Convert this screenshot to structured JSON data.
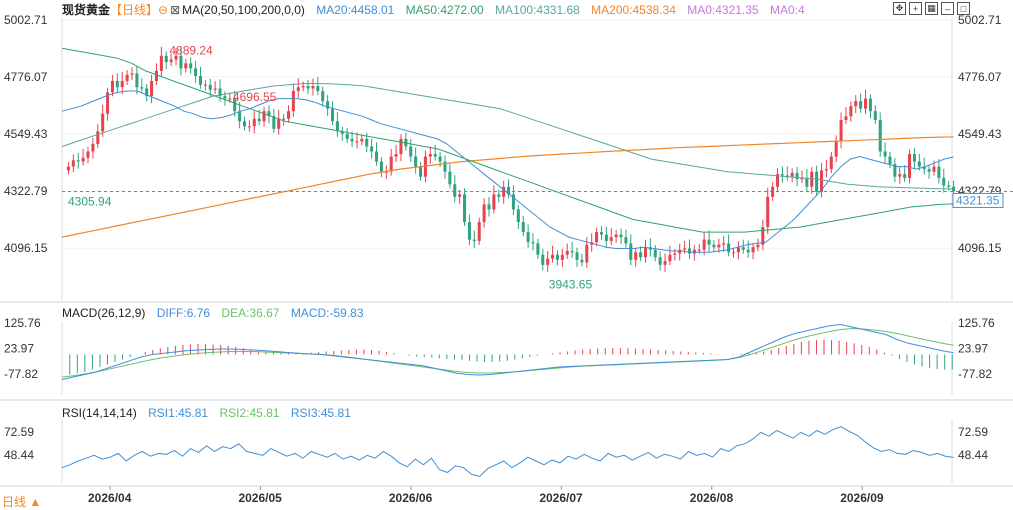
{
  "header": {
    "symbol": "现货黄金",
    "period": "【日线】",
    "ma_label": "MA(20,50,100,200,0,0)",
    "ma20": "MA20:4458.01",
    "ma50": "MA50:4272.00",
    "ma100": "MA100:4331.68",
    "ma200": "MA200:4538.34",
    "ma0a": "MA0:4321.35",
    "ma0b": "MA0:4",
    "macd_label": "MACD(26,12,9)",
    "diff": "DIFF:6.76",
    "dea": "DEA:36.67",
    "macd": "MACD:-59.83",
    "rsi_label": "RSI(14,14,14)",
    "rsi1": "RSI1:45.81",
    "rsi2": "RSI2:45.81",
    "rsi3": "RSI3:45.81"
  },
  "period_button": "日线 ▲",
  "toolbar_icons": [
    "move-icon",
    "crosshair-icon",
    "grid-icon",
    "minimize-icon",
    "fullscreen-icon"
  ],
  "colors": {
    "up": "#e8424f",
    "down": "#2fa37f",
    "ma20": "#3f8fd9",
    "ma50": "#2fa36a",
    "ma100": "#56a8a0",
    "ma200": "#f0862c",
    "dea": "#6cc06c",
    "axis_text": "#333333",
    "price_tag": "#4a90d9"
  },
  "chart_data": [
    {
      "type": "candlestick",
      "panel": "main",
      "yticks": [
        "5002.71",
        "4776.07",
        "4549.43",
        "4322.79",
        "4096.15"
      ],
      "ylim": [
        3950,
        5010
      ],
      "xticks": [
        "2026/04",
        "2026/05",
        "2026/06",
        "2026/07",
        "2026/08",
        "2026/09"
      ],
      "current_price": "4321.35",
      "max_label": "4889.24",
      "min_label": "3943.65",
      "left_label": "4305.94",
      "local_high_label": "4696.55",
      "series_close": [
        4420,
        4445,
        4440,
        4455,
        4480,
        4510,
        4560,
        4630,
        4715,
        4760,
        4735,
        4760,
        4785,
        4790,
        4735,
        4730,
        4700,
        4760,
        4800,
        4860,
        4835,
        4845,
        4860,
        4810,
        4830,
        4810,
        4780,
        4745,
        4745,
        4725,
        4730,
        4700,
        4690,
        4690,
        4640,
        4600,
        4580,
        4580,
        4610,
        4600,
        4640,
        4620,
        4570,
        4610,
        4610,
        4640,
        4720,
        4735,
        4740,
        4730,
        4740,
        4720,
        4680,
        4650,
        4600,
        4560,
        4550,
        4530,
        4520,
        4520,
        4530,
        4500,
        4480,
        4440,
        4400,
        4400,
        4460,
        4470,
        4530,
        4500,
        4460,
        4420,
        4380,
        4460,
        4470,
        4460,
        4440,
        4400,
        4350,
        4300,
        4310,
        4200,
        4130,
        4125,
        4200,
        4270,
        4250,
        4310,
        4300,
        4340,
        4310,
        4250,
        4200,
        4160,
        4120,
        4115,
        4070,
        4030,
        4055,
        4070,
        4050,
        4070,
        4085,
        4080,
        4050,
        4040,
        4110,
        4120,
        4160,
        4150,
        4125,
        4140,
        4150,
        4140,
        4115,
        4050,
        4080,
        4060,
        4100,
        4090,
        4060,
        4030,
        4045,
        4070,
        4075,
        4090,
        4095,
        4075,
        4090,
        4090,
        4130,
        4110,
        4100,
        4110,
        4115,
        4080,
        4080,
        4100,
        4090,
        4080,
        4100,
        4110,
        4180,
        4300,
        4340,
        4390,
        4385,
        4380,
        4395,
        4370,
        4375,
        4340,
        4400,
        4320,
        4405,
        4410,
        4460,
        4520,
        4605,
        4620,
        4660,
        4680,
        4650,
        4690,
        4640,
        4605,
        4480,
        4460,
        4430,
        4380,
        4390,
        4375,
        4470,
        4440,
        4420,
        4410,
        4400,
        4420,
        4375,
        4345,
        4340,
        4321.35
      ],
      "ma20": [
        4640,
        4650,
        4660,
        4675,
        4690,
        4705,
        4715,
        4720,
        4720,
        4705,
        4690,
        4675,
        4660,
        4640,
        4630,
        4615,
        4610,
        4615,
        4625,
        4640,
        4650,
        4665,
        4680,
        4690,
        4690,
        4690,
        4685,
        4675,
        4660,
        4650,
        4640,
        4630,
        4620,
        4605,
        4590,
        4580,
        4570,
        4560,
        4550,
        4540,
        4530,
        4510,
        4480,
        4450,
        4420,
        4390,
        4360,
        4330,
        4300,
        4270,
        4240,
        4210,
        4180,
        4160,
        4140,
        4130,
        4120,
        4110,
        4100,
        4095,
        4095,
        4095,
        4100,
        4095,
        4090,
        4085,
        4085,
        4080,
        4080,
        4080,
        4085,
        4090,
        4100,
        4110,
        4115,
        4120,
        4150,
        4180,
        4210,
        4250,
        4290,
        4330,
        4380,
        4420,
        4450,
        4460,
        4450,
        4440,
        4430,
        4420,
        4420,
        4410,
        4420,
        4435,
        4450,
        4458
      ],
      "ma50": [
        4890,
        4880,
        4870,
        4860,
        4850,
        4830,
        4800,
        4780,
        4760,
        4740,
        4720,
        4700,
        4680,
        4660,
        4640,
        4620,
        4600,
        4590,
        4580,
        4570,
        4560,
        4550,
        4540,
        4530,
        4520,
        4510,
        4500,
        4490,
        4470,
        4450,
        4430,
        4410,
        4390,
        4370,
        4350,
        4330,
        4310,
        4290,
        4270,
        4250,
        4230,
        4210,
        4200,
        4190,
        4180,
        4170,
        4160,
        4160,
        4160,
        4160,
        4165,
        4170,
        4175,
        4180,
        4190,
        4200,
        4210,
        4220,
        4230,
        4240,
        4250,
        4260,
        4265,
        4270,
        4272
      ],
      "ma100": [
        4500,
        4520,
        4540,
        4560,
        4580,
        4600,
        4620,
        4640,
        4660,
        4680,
        4700,
        4710,
        4720,
        4730,
        4740,
        4745,
        4750,
        4750,
        4748,
        4745,
        4740,
        4730,
        4720,
        4710,
        4700,
        4690,
        4680,
        4670,
        4660,
        4650,
        4630,
        4610,
        4590,
        4570,
        4550,
        4530,
        4510,
        4490,
        4470,
        4450,
        4440,
        4430,
        4420,
        4410,
        4400,
        4395,
        4390,
        4385,
        4380,
        4375,
        4370,
        4360,
        4350,
        4345,
        4340,
        4338,
        4336,
        4334,
        4332,
        4331.68
      ],
      "ma200": [
        4140,
        4165,
        4190,
        4215,
        4240,
        4265,
        4290,
        4315,
        4340,
        4365,
        4390,
        4410,
        4425,
        4440,
        4450,
        4460,
        4468,
        4475,
        4482,
        4488,
        4495,
        4500,
        4505,
        4510,
        4515,
        4520,
        4525,
        4530,
        4535,
        4538.34
      ]
    },
    {
      "type": "macd",
      "panel": "macd",
      "yticks": [
        "125.76",
        "23.97",
        "-77.82"
      ],
      "ylim": [
        -110,
        130
      ],
      "histogram": [
        -80,
        -75,
        -70,
        -60,
        -50,
        -40,
        -30,
        -20,
        -10,
        0,
        10,
        18,
        25,
        30,
        35,
        38,
        40,
        42,
        42,
        40,
        38,
        35,
        30,
        25,
        20,
        15,
        10,
        8,
        6,
        5,
        5,
        6,
        8,
        10,
        12,
        14,
        16,
        18,
        20,
        20,
        18,
        15,
        10,
        5,
        0,
        -5,
        -8,
        -10,
        -12,
        -15,
        -18,
        -20,
        -22,
        -25,
        -28,
        -30,
        -30,
        -28,
        -25,
        -20,
        -15,
        -10,
        -5,
        0,
        5,
        8,
        12,
        16,
        20,
        22,
        24,
        25,
        26,
        26,
        25,
        24,
        22,
        20,
        18,
        16,
        14,
        12,
        10,
        8,
        6,
        4,
        2,
        0,
        2,
        4,
        6,
        8,
        12,
        18,
        26,
        34,
        42,
        50,
        55,
        58,
        60,
        58,
        55,
        50,
        45,
        38,
        30,
        20,
        8,
        -5,
        -18,
        -30,
        -40,
        -48,
        -55,
        -58,
        -60,
        -59.83
      ],
      "diff": [
        -100,
        -90,
        -80,
        -70,
        -55,
        -40,
        -25,
        -10,
        0,
        5,
        10,
        15,
        18,
        20,
        22,
        22,
        20,
        18,
        15,
        12,
        8,
        5,
        2,
        0,
        -5,
        -10,
        -15,
        -20,
        -25,
        -30,
        -35,
        -40,
        -45,
        -55,
        -65,
        -75,
        -80,
        -82,
        -80,
        -75,
        -70,
        -65,
        -60,
        -55,
        -50,
        -48,
        -46,
        -44,
        -42,
        -40,
        -38,
        -36,
        -34,
        -32,
        -30,
        -28,
        -26,
        -24,
        -22,
        -20,
        -10,
        10,
        30,
        50,
        70,
        85,
        95,
        105,
        115,
        120,
        110,
        100,
        90,
        80,
        60,
        45,
        35,
        25,
        15,
        6.76
      ],
      "dea": [
        -90,
        -85,
        -78,
        -70,
        -60,
        -50,
        -40,
        -30,
        -20,
        -12,
        -6,
        0,
        4,
        8,
        10,
        12,
        12,
        12,
        10,
        8,
        6,
        4,
        2,
        0,
        -3,
        -8,
        -14,
        -20,
        -26,
        -32,
        -38,
        -44,
        -50,
        -56,
        -62,
        -68,
        -72,
        -74,
        -74,
        -72,
        -70,
        -66,
        -62,
        -58,
        -54,
        -50,
        -47,
        -45,
        -43,
        -41,
        -39,
        -37,
        -35,
        -33,
        -31,
        -29,
        -27,
        -25,
        -23,
        -20,
        -12,
        0,
        15,
        30,
        45,
        60,
        72,
        82,
        92,
        100,
        104,
        102,
        98,
        92,
        84,
        74,
        64,
        54,
        45,
        36.67
      ]
    },
    {
      "type": "line",
      "panel": "rsi",
      "yticks": [
        "72.59",
        "48.44"
      ],
      "ylim": [
        20,
        85
      ],
      "rsi": [
        35,
        38,
        42,
        45,
        48,
        44,
        46,
        50,
        42,
        48,
        52,
        47,
        50,
        49,
        53,
        47,
        55,
        51,
        58,
        52,
        57,
        55,
        60,
        52,
        50,
        48,
        55,
        51,
        47,
        50,
        45,
        52,
        49,
        46,
        50,
        44,
        47,
        43,
        48,
        45,
        52,
        47,
        40,
        36,
        44,
        38,
        45,
        33,
        30,
        37,
        35,
        28,
        26,
        34,
        38,
        42,
        35,
        40,
        46,
        42,
        38,
        43,
        40,
        47,
        44,
        49,
        45,
        42,
        50,
        46,
        48,
        43,
        47,
        51,
        45,
        49,
        47,
        44,
        52,
        48,
        50,
        46,
        55,
        52,
        58,
        60,
        65,
        72,
        68,
        74,
        70,
        66,
        72,
        68,
        74,
        70,
        75,
        78,
        73,
        69,
        62,
        56,
        52,
        54,
        50,
        49,
        53,
        51,
        48,
        50,
        47,
        45.81
      ]
    }
  ]
}
